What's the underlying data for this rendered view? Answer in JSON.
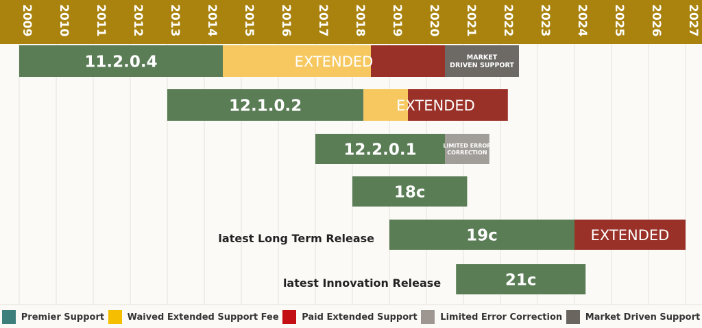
{
  "chart_data": {
    "type": "gantt",
    "x_axis": {
      "years": [
        "2009",
        "2010",
        "2011",
        "2012",
        "2013",
        "2014",
        "2015",
        "2016",
        "2017",
        "2018",
        "2019",
        "2020",
        "2021",
        "2022",
        "2023",
        "2024",
        "2025",
        "2026",
        "2027"
      ]
    },
    "releases": [
      {
        "label": "11.2.0.4",
        "annotation": "",
        "phases": [
          {
            "type": "premier",
            "start": 2009.0,
            "end": 2014.5,
            "text": ""
          },
          {
            "type": "waived",
            "start": 2014.5,
            "end": 2018.5,
            "text": ""
          },
          {
            "type": "paid",
            "start": 2018.5,
            "end": 2020.5,
            "text": ""
          },
          {
            "type": "market",
            "start": 2020.5,
            "end": 2022.5,
            "text": "MARKET\nDRIVEN SUPPORT"
          }
        ],
        "extended_text": "EXTENDED",
        "extended_span": [
          2014.5,
          2020.5
        ]
      },
      {
        "label": "12.1.0.2",
        "annotation": "",
        "phases": [
          {
            "type": "premier",
            "start": 2013.0,
            "end": 2018.3,
            "text": ""
          },
          {
            "type": "waived",
            "start": 2018.3,
            "end": 2019.5,
            "text": ""
          },
          {
            "type": "paid",
            "start": 2019.5,
            "end": 2022.2,
            "text": ""
          }
        ],
        "extended_text": "EXTENDED",
        "extended_span": [
          2018.3,
          2022.2
        ]
      },
      {
        "label": "12.2.0.1",
        "annotation": "",
        "phases": [
          {
            "type": "premier",
            "start": 2017.0,
            "end": 2020.5,
            "text": ""
          },
          {
            "type": "limited",
            "start": 2020.5,
            "end": 2021.7,
            "text": "LIMITED ERROR\nCORRECTION"
          }
        ],
        "extended_text": "",
        "extended_span": null
      },
      {
        "label": "18c",
        "annotation": "",
        "phases": [
          {
            "type": "premier",
            "start": 2018.0,
            "end": 2021.1,
            "text": ""
          }
        ],
        "extended_text": "",
        "extended_span": null
      },
      {
        "label": "19c",
        "annotation": "latest Long Term Release",
        "phases": [
          {
            "type": "premier",
            "start": 2019.0,
            "end": 2024.0,
            "text": ""
          },
          {
            "type": "paid",
            "start": 2024.0,
            "end": 2027.0,
            "text": ""
          }
        ],
        "extended_text": "EXTENDED",
        "extended_span": [
          2024.0,
          2027.0
        ]
      },
      {
        "label": "21c",
        "annotation": "latest Innovation Release",
        "phases": [
          {
            "type": "premier",
            "start": 2020.8,
            "end": 2024.3,
            "text": ""
          }
        ],
        "extended_text": "",
        "extended_span": null
      }
    ]
  },
  "legend": [
    {
      "key": "premier",
      "label": "Premier Support",
      "color": "#3d7f7a"
    },
    {
      "key": "waived",
      "label": "Waived Extended Support Fee",
      "color": "#f6be00"
    },
    {
      "key": "paid",
      "label": "Paid Extended Support",
      "color": "#c30e13"
    },
    {
      "key": "limited",
      "label": "Limited Error Correction",
      "color": "#9e9791"
    },
    {
      "key": "market",
      "label": "Market Driven Support",
      "color": "#6b6560"
    }
  ],
  "colors": {
    "header": "#a9830e",
    "premier_bar": "#5a7d56",
    "waived_bar": "#f6c85f",
    "paid_bar": "#9a3128",
    "limited_bar": "#a19d98",
    "market_bar": "#6d6a66",
    "grid": "#e4e1da"
  }
}
